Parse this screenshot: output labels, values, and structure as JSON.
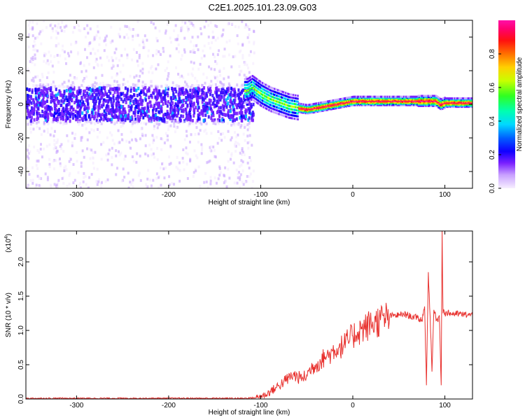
{
  "title": "C2E1.2025.101.23.09.G03",
  "chart_data": [
    {
      "type": "heatmap",
      "xlabel": "Height of straight line (km)",
      "ylabel": "Frequency (Hz)",
      "xlim": [
        -355,
        130
      ],
      "ylim": [
        -50,
        50
      ],
      "xticks": [
        -300,
        -200,
        -100,
        0,
        100
      ],
      "yticks": [
        -40,
        -20,
        0,
        20,
        40
      ],
      "colorbar": {
        "label": "Normalized spectral amplitude",
        "range": [
          0,
          1
        ],
        "ticks": [
          0.0,
          0.2,
          0.4,
          0.6,
          0.8
        ],
        "colormap": "purple-blue-cyan-green-yellow-orange-red-magenta",
        "colors": [
          "#f3eaff",
          "#c9a6ff",
          "#7a20ff",
          "#3a10ff",
          "#0000ff",
          "#00b4ff",
          "#00ffd8",
          "#20ff40",
          "#c8ff00",
          "#ffd000",
          "#ff7000",
          "#ff1010",
          "#ff0060",
          "#ff10a0"
        ]
      },
      "ridge": {
        "description_x": [
          -115,
          -110,
          -100,
          -90,
          -80,
          -70,
          -60,
          -50,
          -40,
          -30,
          -20,
          -10,
          0,
          20,
          40,
          60,
          80,
          90,
          95,
          100,
          110,
          130
        ],
        "frequency_hz": [
          8,
          10,
          6,
          3,
          1,
          -1,
          -2,
          -3,
          -2,
          -1,
          0,
          1,
          2,
          2,
          2,
          2,
          2,
          2,
          0,
          1,
          1,
          1
        ]
      }
    },
    {
      "type": "line",
      "xlabel": "Height of straight line (km)",
      "ylabel": "SNR (10 * v/v)",
      "y_multiplier_label": "(x10",
      "y_multiplier_exponent": "4",
      "y_multiplier_close": ")",
      "xlim": [
        -355,
        130
      ],
      "ylim": [
        0,
        2.45
      ],
      "xticks": [
        -300,
        -200,
        -100,
        0,
        100
      ],
      "yticks": [
        0.0,
        0.5,
        1.0,
        1.5,
        2.0
      ],
      "ytick_labels": [
        "0.0",
        "0.5",
        "1.0",
        "1.5",
        "2.0"
      ],
      "color": "#e8312e",
      "series": [
        {
          "x": [
            -355,
            -320,
            -280,
            -240,
            -200,
            -160,
            -120,
            -105,
            -95,
            -85,
            -75,
            -65,
            -60,
            -55,
            -50,
            -45,
            -40,
            -35,
            -30,
            -25,
            -20,
            -15,
            -10,
            -5,
            0,
            5,
            10,
            15,
            20,
            25,
            30,
            35,
            40,
            45,
            50,
            55,
            60,
            65,
            70,
            75,
            78,
            80,
            82,
            84,
            86,
            88,
            90,
            92,
            94,
            96,
            97,
            98,
            99,
            100,
            105,
            110,
            115,
            120,
            125,
            130
          ],
          "y": [
            0.01,
            0.01,
            0.01,
            0.01,
            0.01,
            0.01,
            0.01,
            0.02,
            0.06,
            0.15,
            0.25,
            0.35,
            0.32,
            0.3,
            0.35,
            0.45,
            0.5,
            0.55,
            0.62,
            0.65,
            0.72,
            0.75,
            0.78,
            0.85,
            0.92,
            0.98,
            1.02,
            1.05,
            1.1,
            1.12,
            1.15,
            1.18,
            1.2,
            1.22,
            1.22,
            1.24,
            1.22,
            1.2,
            1.18,
            1.15,
            1.35,
            0.2,
            1.85,
            1.2,
            0.4,
            1.3,
            1.2,
            1.15,
            1.22,
            0.2,
            2.45,
            1.25,
            1.3,
            1.25,
            1.25,
            1.24,
            1.24,
            1.23,
            1.23,
            1.22
          ]
        }
      ]
    }
  ]
}
